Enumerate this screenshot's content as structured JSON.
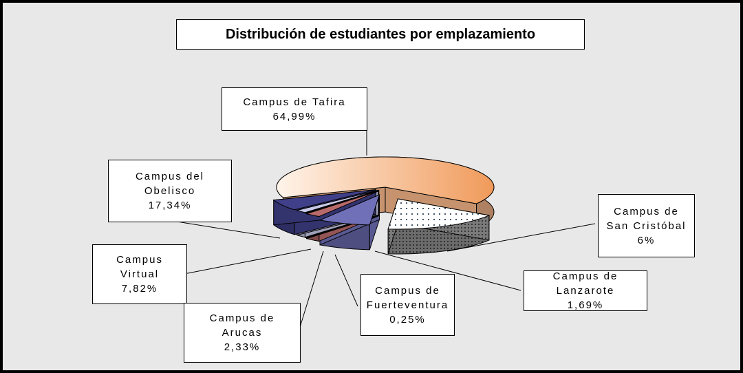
{
  "chart_data": {
    "type": "pie",
    "title": "Distribución de estudiantes por emplazamiento",
    "categories": [
      "Campus de Tafira",
      "Campus del Obelisco",
      "Campus Virtual",
      "Campus de Arucas",
      "Campus de Fuerteventura",
      "Campus de Lanzarote",
      "Campus de San Cristóbal"
    ],
    "values": [
      64.99,
      17.34,
      7.82,
      2.33,
      0.25,
      1.69,
      6
    ],
    "value_labels": [
      "64,99%",
      "17,34%",
      "7,82%",
      "2,33%",
      "0,25%",
      "1,69%",
      "6%"
    ],
    "colors": [
      "#f7b88a",
      "#f4f4f4",
      "#7070b8",
      "#b86a6a",
      "#e06a58",
      "#c8c8e8",
      "#40408a"
    ]
  }
}
